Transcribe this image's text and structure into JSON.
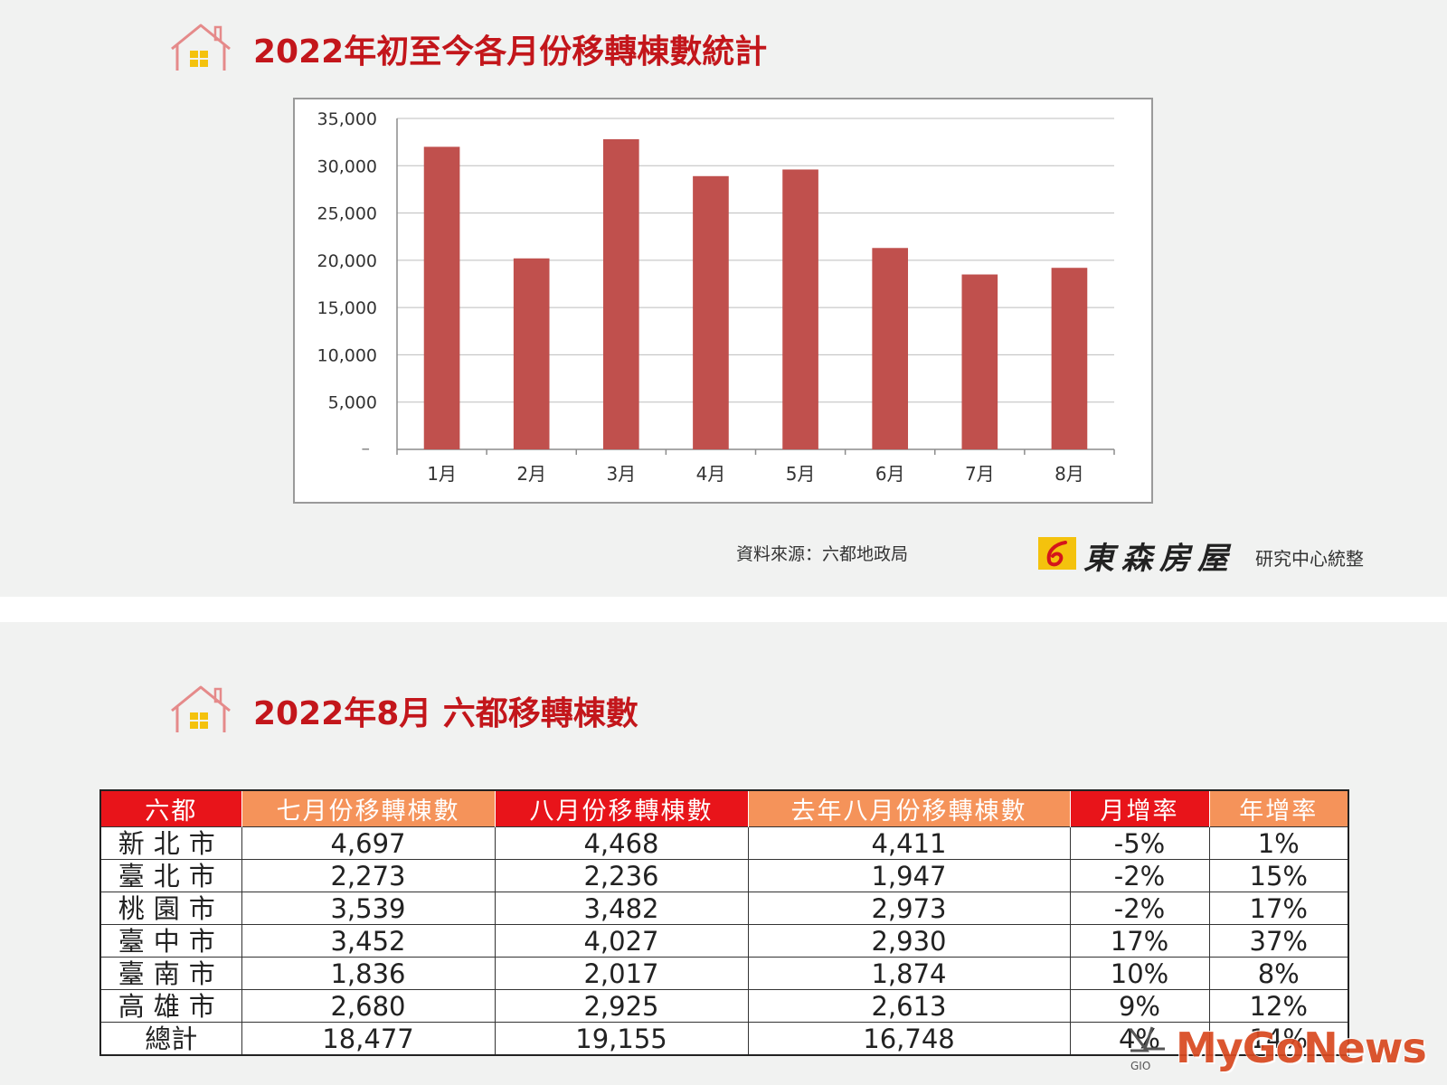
{
  "chart_section": {
    "title": "2022年初至今各月份移轉棟數統計",
    "source_note": "資料來源：六都地政局",
    "brand_name": "東森房屋",
    "brand_suffix": "研究中心統整"
  },
  "chart_data": {
    "type": "bar",
    "title": "2022年初至今各月份移轉棟數統計",
    "categories": [
      "1月",
      "2月",
      "3月",
      "4月",
      "5月",
      "6月",
      "7月",
      "8月"
    ],
    "values": [
      32000,
      20200,
      32800,
      28900,
      29600,
      21300,
      18500,
      19200
    ],
    "ylim": [
      0,
      35000
    ],
    "yticks": [
      5000,
      10000,
      15000,
      20000,
      25000,
      30000,
      35000
    ],
    "ytick_labels": [
      "5,000",
      "10,000",
      "15,000",
      "20,000",
      "25,000",
      "30,000",
      "35,000"
    ],
    "zero_label": "–",
    "grid": true,
    "bar_color": "#c0504d"
  },
  "table_section": {
    "title": "2022年8月 六都移轉棟數",
    "headers": [
      "六都",
      "七月份移轉棟數",
      "八月份移轉棟數",
      "去年八月份移轉棟數",
      "月增率",
      "年增率"
    ],
    "header_colors": [
      "#e8141a",
      "#f5935a",
      "#e8141a",
      "#f5935a",
      "#e8141a",
      "#f5935a"
    ],
    "rows": [
      [
        "新北市",
        "4,697",
        "4,468",
        "4,411",
        "-5%",
        "1%"
      ],
      [
        "臺北市",
        "2,273",
        "2,236",
        "1,947",
        "-2%",
        "15%"
      ],
      [
        "桃園市",
        "3,539",
        "3,482",
        "2,973",
        "-2%",
        "17%"
      ],
      [
        "臺中市",
        "3,452",
        "4,027",
        "2,930",
        "17%",
        "37%"
      ],
      [
        "臺南市",
        "1,836",
        "2,017",
        "1,874",
        "10%",
        "8%"
      ],
      [
        "高雄市",
        "2,680",
        "2,925",
        "2,613",
        "9%",
        "12%"
      ],
      [
        "總計",
        "18,477",
        "19,155",
        "16,748",
        "4%",
        "14%"
      ]
    ]
  },
  "watermark": {
    "text": "MyGoNews",
    "mark_text": "GIO"
  }
}
